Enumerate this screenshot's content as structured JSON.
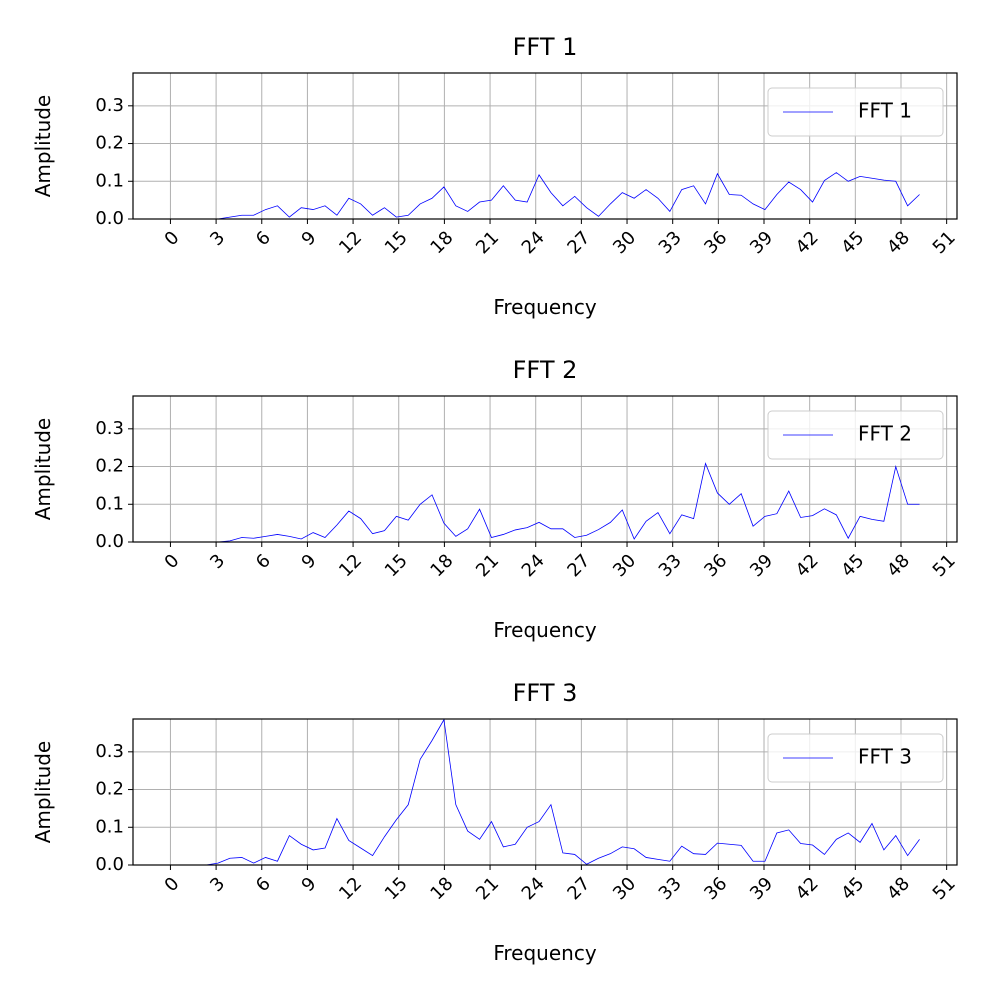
{
  "chart_data": [
    {
      "type": "line",
      "title": "FFT 1",
      "xlabel": "Frequency",
      "ylabel": "Amplitude",
      "x": [
        0,
        0.78125,
        1.5625,
        2.34375,
        3.125,
        3.90625,
        4.6875,
        5.46875,
        6.25,
        7.03125,
        7.8125,
        8.59375,
        9.375,
        10.15625,
        10.9375,
        11.71875,
        12.5,
        13.28125,
        14.0625,
        14.84375,
        15.625,
        16.40625,
        17.1875,
        17.96875,
        18.75,
        19.53125,
        20.3125,
        21.09375,
        21.875,
        22.65625,
        23.4375,
        24.21875,
        25,
        25.78125,
        26.5625,
        27.34375,
        28.125,
        28.90625,
        29.6875,
        30.46875,
        31.25,
        32.03125,
        32.8125,
        33.59375,
        34.375,
        35.15625,
        35.9375,
        36.71875,
        37.5,
        38.28125,
        39.0625,
        39.84375,
        40.625,
        41.40625,
        42.1875,
        42.96875,
        43.75,
        44.53125,
        45.3125,
        46.09375,
        46.875,
        47.65625,
        48.4375,
        49.21875
      ],
      "series": [
        {
          "name": "FFT 1",
          "color": "#0000ff",
          "values": [
            0,
            0,
            0,
            0,
            0,
            0.005,
            0.01,
            0.01,
            0.025,
            0.035,
            0.005,
            0.03,
            0.025,
            0.035,
            0.01,
            0.055,
            0.04,
            0.01,
            0.03,
            0.005,
            0.01,
            0.04,
            0.055,
            0.085,
            0.035,
            0.02,
            0.045,
            0.05,
            0.088,
            0.05,
            0.045,
            0.117,
            0.07,
            0.035,
            0.06,
            0.03,
            0.007,
            0.04,
            0.07,
            0.055,
            0.078,
            0.055,
            0.02,
            0.078,
            0.088,
            0.04,
            0.12,
            0.065,
            0.063,
            0.04,
            0.025,
            0.065,
            0.098,
            0.078,
            0.045,
            0.102,
            0.123,
            0.1,
            0.113,
            0.108,
            0.103,
            0.1,
            0.035,
            0.065
          ]
        }
      ],
      "xlim": [
        -2.46,
        51.68
      ],
      "xticks": [
        0,
        3,
        6,
        9,
        12,
        15,
        18,
        21,
        24,
        27,
        30,
        33,
        36,
        39,
        42,
        45,
        48,
        51
      ],
      "ylim": [
        0,
        0.387
      ],
      "yticks": [
        {
          "value": 0,
          "label": "0.0"
        },
        0.1,
        0.2,
        0.3
      ],
      "grid": true,
      "legend": "upper right"
    },
    {
      "type": "line",
      "title": "FFT 2",
      "xlabel": "Frequency",
      "ylabel": "Amplitude",
      "x": [
        0,
        0.78125,
        1.5625,
        2.34375,
        3.125,
        3.90625,
        4.6875,
        5.46875,
        6.25,
        7.03125,
        7.8125,
        8.59375,
        9.375,
        10.15625,
        10.9375,
        11.71875,
        12.5,
        13.28125,
        14.0625,
        14.84375,
        15.625,
        16.40625,
        17.1875,
        17.96875,
        18.75,
        19.53125,
        20.3125,
        21.09375,
        21.875,
        22.65625,
        23.4375,
        24.21875,
        25,
        25.78125,
        26.5625,
        27.34375,
        28.125,
        28.90625,
        29.6875,
        30.46875,
        31.25,
        32.03125,
        32.8125,
        33.59375,
        34.375,
        35.15625,
        35.9375,
        36.71875,
        37.5,
        38.28125,
        39.0625,
        39.84375,
        40.625,
        41.40625,
        42.1875,
        42.96875,
        43.75,
        44.53125,
        45.3125,
        46.09375,
        46.875,
        47.65625,
        48.4375,
        49.21875
      ],
      "series": [
        {
          "name": "FFT 2",
          "color": "#0000ff",
          "values": [
            0,
            0,
            0,
            0,
            0,
            0.003,
            0.012,
            0.01,
            0.015,
            0.02,
            0.015,
            0.008,
            0.025,
            0.012,
            0.045,
            0.082,
            0.062,
            0.022,
            0.03,
            0.068,
            0.058,
            0.1,
            0.125,
            0.05,
            0.015,
            0.035,
            0.087,
            0.012,
            0.02,
            0.032,
            0.038,
            0.052,
            0.035,
            0.035,
            0.012,
            0.018,
            0.033,
            0.052,
            0.085,
            0.008,
            0.055,
            0.078,
            0.022,
            0.072,
            0.062,
            0.208,
            0.13,
            0.1,
            0.128,
            0.042,
            0.068,
            0.075,
            0.135,
            0.065,
            0.07,
            0.088,
            0.072,
            0.01,
            0.068,
            0.06,
            0.055,
            0.2,
            0.1,
            0.1
          ]
        }
      ],
      "xlim": [
        -2.46,
        51.68
      ],
      "xticks": [
        0,
        3,
        6,
        9,
        12,
        15,
        18,
        21,
        24,
        27,
        30,
        33,
        36,
        39,
        42,
        45,
        48,
        51
      ],
      "ylim": [
        0,
        0.387
      ],
      "yticks": [
        {
          "value": 0,
          "label": "0.0"
        },
        0.1,
        0.2,
        0.3
      ],
      "grid": true,
      "legend": "upper right"
    },
    {
      "type": "line",
      "title": "FFT 3",
      "xlabel": "Frequency",
      "ylabel": "Amplitude",
      "x": [
        0,
        0.78125,
        1.5625,
        2.34375,
        3.125,
        3.90625,
        4.6875,
        5.46875,
        6.25,
        7.03125,
        7.8125,
        8.59375,
        9.375,
        10.15625,
        10.9375,
        11.71875,
        12.5,
        13.28125,
        14.0625,
        14.84375,
        15.625,
        16.40625,
        17.1875,
        17.96875,
        18.75,
        19.53125,
        20.3125,
        21.09375,
        21.875,
        22.65625,
        23.4375,
        24.21875,
        25,
        25.78125,
        26.5625,
        27.34375,
        28.125,
        28.90625,
        29.6875,
        30.46875,
        31.25,
        32.03125,
        32.8125,
        33.59375,
        34.375,
        35.15625,
        35.9375,
        36.71875,
        37.5,
        38.28125,
        39.0625,
        39.84375,
        40.625,
        41.40625,
        42.1875,
        42.96875,
        43.75,
        44.53125,
        45.3125,
        46.09375,
        46.875,
        47.65625,
        48.4375,
        49.21875
      ],
      "series": [
        {
          "name": "FFT 3",
          "color": "#0000ff",
          "values": [
            0,
            0,
            0,
            0,
            0.005,
            0.018,
            0.02,
            0.005,
            0.02,
            0.01,
            0.078,
            0.055,
            0.04,
            0.045,
            0.123,
            0.065,
            0.045,
            0.025,
            0.075,
            0.12,
            0.16,
            0.28,
            0.33,
            0.385,
            0.16,
            0.09,
            0.068,
            0.115,
            0.048,
            0.055,
            0.1,
            0.115,
            0.16,
            0.032,
            0.028,
            0.002,
            0.018,
            0.03,
            0.048,
            0.043,
            0.02,
            0.015,
            0.01,
            0.05,
            0.03,
            0.028,
            0.058,
            0.055,
            0.052,
            0.01,
            0.01,
            0.085,
            0.093,
            0.057,
            0.053,
            0.028,
            0.068,
            0.085,
            0.06,
            0.11,
            0.04,
            0.078,
            0.025,
            0.068
          ]
        }
      ],
      "xlim": [
        -2.46,
        51.68
      ],
      "xticks": [
        0,
        3,
        6,
        9,
        12,
        15,
        18,
        21,
        24,
        27,
        30,
        33,
        36,
        39,
        42,
        45,
        48,
        51
      ],
      "ylim": [
        0,
        0.387
      ],
      "yticks": [
        {
          "value": 0,
          "label": "0.0"
        },
        0.1,
        0.2,
        0.3
      ],
      "grid": true,
      "legend": "upper right"
    }
  ]
}
